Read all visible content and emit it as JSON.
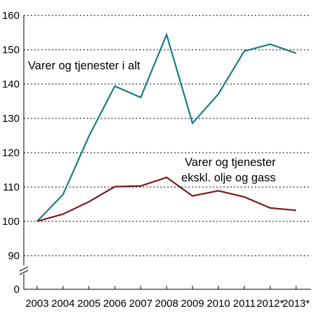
{
  "chart_data": {
    "type": "line",
    "categories": [
      "2003",
      "2004",
      "2005",
      "2006",
      "2007",
      "2008",
      "2009",
      "2010",
      "2011",
      "2012*",
      "2013*"
    ],
    "y_ticks": [
      "0",
      "90",
      "100",
      "110",
      "120",
      "130",
      "140",
      "150",
      "160"
    ],
    "ylim": [
      90,
      160
    ],
    "axis_break": true,
    "grid": "horizontal dotted",
    "series": [
      {
        "name": "Varer og tjenester i alt",
        "color": "#1a7a8c",
        "values": [
          100,
          107.8,
          124.8,
          139.4,
          136.1,
          154.4,
          128.6,
          137.1,
          149.6,
          151.6,
          149.0
        ]
      },
      {
        "name": "Varer og tjenester eksl. olje og gass",
        "color": "#7a1a1a",
        "values": [
          100,
          102.1,
          105.7,
          110.1,
          110.3,
          112.8,
          107.4,
          108.9,
          107.1,
          103.9,
          103.2
        ]
      }
    ],
    "labels": {
      "series1": "Varer og tjenester i alt",
      "series2_line1": "Varer og tjenester",
      "series2_line2": "ekskl. olje og gass"
    }
  }
}
